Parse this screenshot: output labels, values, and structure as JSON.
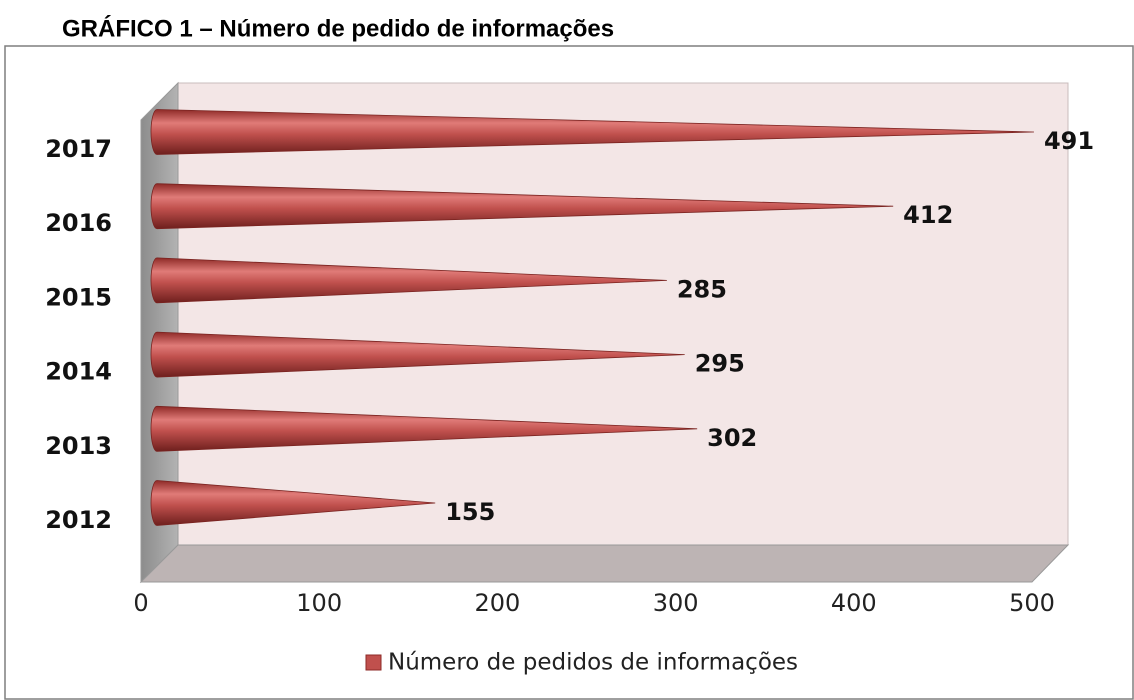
{
  "chart_data": {
    "type": "bar",
    "orientation": "horizontal",
    "style": "3d-cone",
    "title": "GRÁFICO 1 – Número de pedido de informações",
    "categories": [
      "2012",
      "2013",
      "2014",
      "2015",
      "2016",
      "2017"
    ],
    "series": [
      {
        "name": "Número de pedidos de informações",
        "color": "#c0504d",
        "values": [
          155,
          302,
          295,
          285,
          412,
          491
        ]
      }
    ],
    "xlim": [
      0,
      500
    ],
    "xticks": [
      0,
      100,
      200,
      300,
      400,
      500
    ],
    "grid": false,
    "legend": "bottom",
    "data_labels": true
  }
}
